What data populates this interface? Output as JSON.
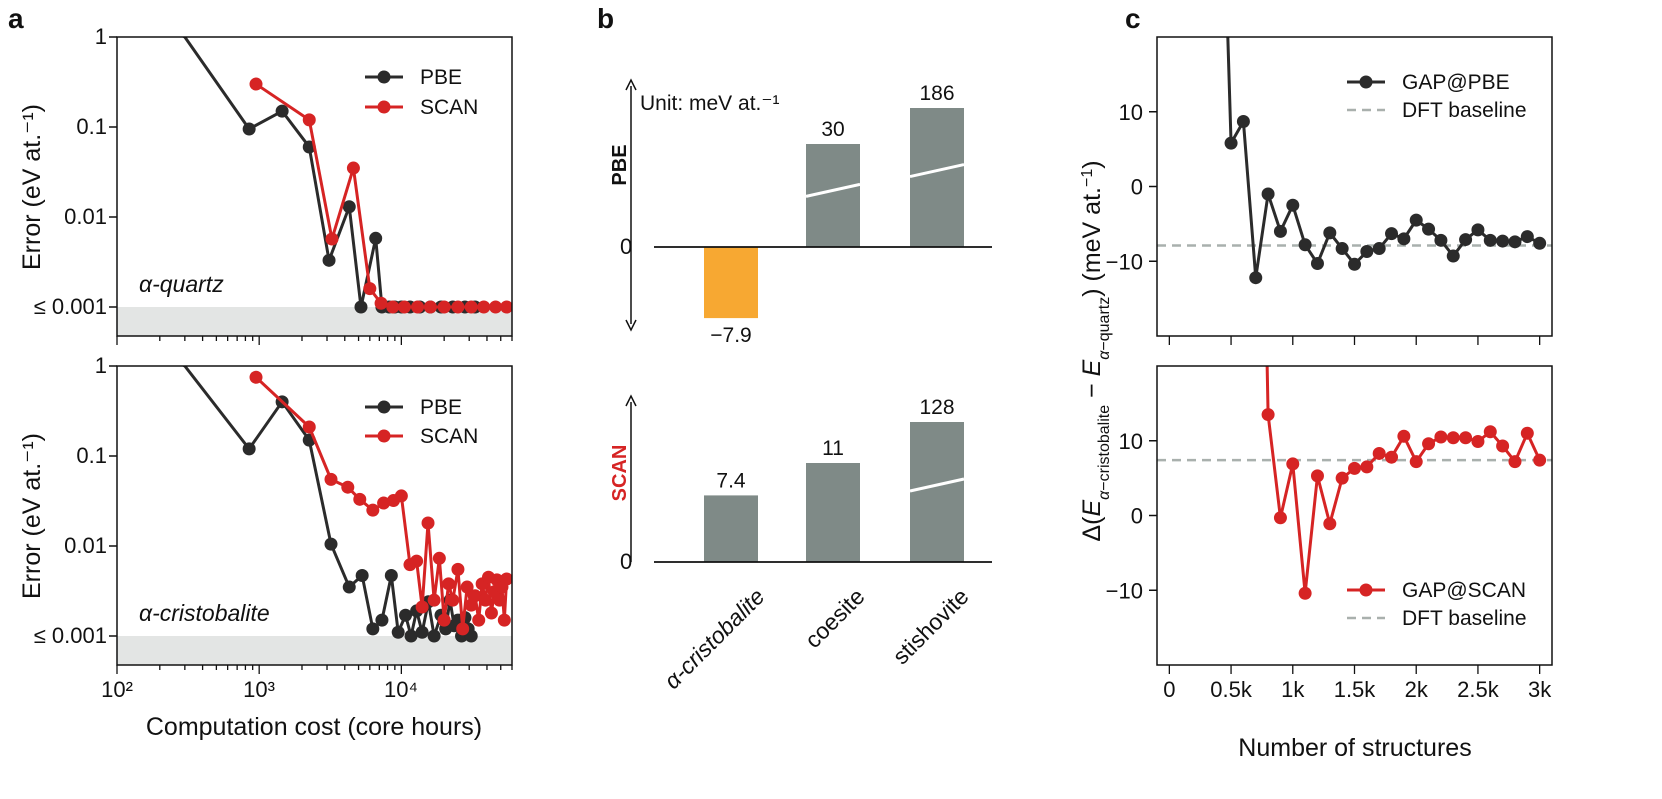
{
  "panel_labels": [
    "a",
    "b",
    "c"
  ],
  "colors": {
    "pbe": "#2b2b2b",
    "scan": "#d62424",
    "bar_grey": "#7f8a87",
    "bar_orange": "#f7a832",
    "baseline_dashed": "#a9b0ad",
    "shade": "#e3e5e4"
  },
  "chart_data": [
    {
      "id": "a-top",
      "type": "line",
      "annotation": "α-quartz",
      "ylabel": "Error (eV at.⁻¹)",
      "xlabel": "",
      "xscale": "log",
      "yscale": "log",
      "xlim": [
        100,
        60000
      ],
      "ylim": [
        0.001,
        1
      ],
      "ytick_labels": [
        "1",
        "0.1",
        "0.01",
        "≤ 0.001"
      ],
      "legend_position": "top-right",
      "series": [
        {
          "name": "PBE",
          "x": [
            100,
            300,
            850,
            1450,
            2250,
            3100,
            4300,
            5200,
            6600,
            7300,
            8200,
            9000,
            10000,
            11500,
            13500,
            16000,
            19000,
            23000,
            28000,
            33000
          ],
          "y": [
            2.5,
            1.0,
            0.095,
            0.15,
            0.06,
            0.0033,
            0.013,
            0.001,
            0.0058,
            0.001,
            0.001,
            0.001,
            0.001,
            0.001,
            0.001,
            0.001,
            0.001,
            0.001,
            0.001,
            0.001
          ]
        },
        {
          "name": "SCAN",
          "x": [
            950,
            2250,
            3250,
            4600,
            6000,
            7200,
            8700,
            10500,
            13000,
            16000,
            20000,
            25000,
            31000,
            38000,
            46000,
            55000
          ],
          "y": [
            0.3,
            0.12,
            0.0057,
            0.035,
            0.0016,
            0.0011,
            0.001,
            0.001,
            0.001,
            0.001,
            0.001,
            0.001,
            0.001,
            0.001,
            0.001,
            0.001
          ]
        }
      ]
    },
    {
      "id": "a-bottom",
      "type": "line",
      "annotation": "α-cristobalite",
      "ylabel": "Error (eV at.⁻¹)",
      "xlabel": "Computation cost (core hours)",
      "xscale": "log",
      "yscale": "log",
      "xlim": [
        100,
        60000
      ],
      "ylim": [
        0.001,
        1
      ],
      "ytick_labels": [
        "1",
        "0.1",
        "0.01",
        "≤ 0.001"
      ],
      "xtick_labels": [
        "10²",
        "10³",
        "10⁴"
      ],
      "legend_position": "top-right",
      "series": [
        {
          "name": "PBE",
          "x": [
            100,
            300,
            850,
            1450,
            2250,
            3200,
            4300,
            5300,
            6300,
            7300,
            8500,
            9500,
            10700,
            11700,
            12800,
            14000,
            15500,
            17000,
            19000,
            20500,
            22000,
            23500,
            25000,
            26500,
            28000,
            29500,
            31000
          ],
          "y": [
            2.5,
            1.0,
            0.12,
            0.4,
            0.15,
            0.0105,
            0.0035,
            0.0047,
            0.0012,
            0.0015,
            0.0047,
            0.0011,
            0.0017,
            0.001,
            0.0019,
            0.0011,
            0.0024,
            0.001,
            0.0017,
            0.0012,
            0.0025,
            0.0013,
            0.0015,
            0.001,
            0.0016,
            0.0012,
            0.001
          ]
        },
        {
          "name": "SCAN",
          "x": [
            950,
            2250,
            3200,
            4200,
            5100,
            6300,
            7500,
            8800,
            10000,
            11500,
            12800,
            14000,
            15400,
            17000,
            18500,
            20000,
            21500,
            23000,
            25000,
            27000,
            29000,
            31000,
            33000,
            35000,
            37000,
            39000,
            41000,
            43000,
            45000,
            47000,
            49000,
            51000,
            53000,
            55000
          ],
          "y": [
            0.75,
            0.21,
            0.055,
            0.045,
            0.033,
            0.025,
            0.03,
            0.032,
            0.036,
            0.0062,
            0.0068,
            0.0021,
            0.018,
            0.0025,
            0.0073,
            0.0015,
            0.0038,
            0.0025,
            0.0055,
            0.0012,
            0.0035,
            0.0022,
            0.0028,
            0.0015,
            0.0038,
            0.0025,
            0.0045,
            0.0018,
            0.0031,
            0.0042,
            0.0025,
            0.0035,
            0.0015,
            0.0043
          ]
        }
      ]
    },
    {
      "id": "b-top",
      "type": "bar",
      "side_label": "PBE",
      "unit_label": "Unit: meV at.⁻¹",
      "zero_label": "0",
      "categories": [
        "α-cristobalite",
        "coesite",
        "stishovite"
      ],
      "values": [
        -7.9,
        30,
        186
      ],
      "value_labels": [
        "−7.9",
        "30",
        "186"
      ],
      "axis_break": [
        false,
        true,
        true
      ]
    },
    {
      "id": "b-bottom",
      "type": "bar",
      "side_label": "SCAN",
      "zero_label": "0",
      "categories": [
        "α-cristobalite",
        "coesite",
        "stishovite"
      ],
      "values": [
        7.4,
        11,
        128
      ],
      "value_labels": [
        "7.4",
        "11",
        "128"
      ],
      "axis_break": [
        false,
        false,
        true
      ]
    },
    {
      "id": "c-top",
      "type": "line",
      "ylabel": "Δ(E α-cristobalite − E α-quartz) (meV at.⁻¹)",
      "xlim": [
        -100,
        3100
      ],
      "ylim": [
        -20,
        20
      ],
      "yticks": [
        10,
        0,
        -10
      ],
      "legend_position": "top-right",
      "baseline": {
        "name": "DFT baseline",
        "y": -7.9
      },
      "series": [
        {
          "name": "GAP@PBE",
          "x": [
            470,
            500,
            600,
            700,
            800,
            900,
            1000,
            1100,
            1200,
            1300,
            1400,
            1500,
            1600,
            1700,
            1800,
            1900,
            2000,
            2100,
            2200,
            2300,
            2400,
            2500,
            2600,
            2700,
            2800,
            2900,
            3000
          ],
          "y": [
            22,
            5.8,
            8.7,
            -12.2,
            -1.0,
            -6.0,
            -2.5,
            -7.8,
            -10.3,
            -6.2,
            -8.3,
            -10.4,
            -8.7,
            -8.3,
            -6.3,
            -7.0,
            -4.5,
            -5.7,
            -7.2,
            -9.3,
            -7.1,
            -5.8,
            -7.2,
            -7.3,
            -7.4,
            -6.7,
            -7.6
          ]
        }
      ]
    },
    {
      "id": "c-bottom",
      "type": "line",
      "xlabel": "Number of structures",
      "xlim": [
        -100,
        3100
      ],
      "ylim": [
        -20,
        20
      ],
      "yticks": [
        10,
        0,
        -10
      ],
      "xtick_labels": [
        "0",
        "0.5k",
        "1k",
        "1.5k",
        "2k",
        "2.5k",
        "3k"
      ],
      "legend_position": "bottom-right",
      "baseline": {
        "name": "DFT baseline",
        "y": 7.4
      },
      "series": [
        {
          "name": "GAP@SCAN",
          "x": [
            790,
            800,
            900,
            1000,
            1100,
            1200,
            1300,
            1400,
            1500,
            1600,
            1700,
            1800,
            1900,
            2000,
            2100,
            2200,
            2300,
            2400,
            2500,
            2600,
            2700,
            2800,
            2900,
            3000
          ],
          "y": [
            22,
            13.5,
            -0.3,
            6.9,
            -10.4,
            5.3,
            -1.1,
            5.0,
            6.3,
            6.5,
            8.3,
            7.8,
            10.6,
            7.2,
            9.6,
            10.5,
            10.4,
            10.4,
            9.9,
            11.2,
            9.3,
            7.2,
            11.0,
            7.4
          ]
        }
      ]
    }
  ]
}
